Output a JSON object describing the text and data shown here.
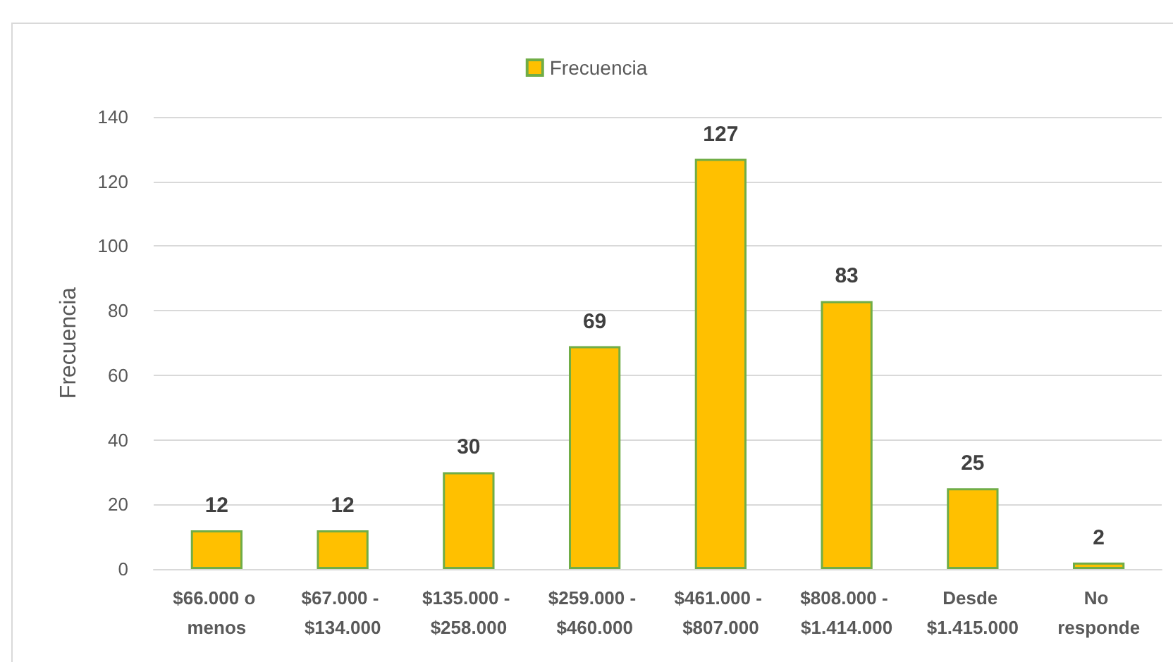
{
  "chart_data": {
    "type": "bar",
    "categories": [
      "$66.000 o menos",
      "$67.000 - $134.000",
      "$135.000 - $258.000",
      "$259.000 - $460.000",
      "$461.000 - $807.000",
      "$808.000 - $1.414.000",
      "Desde $1.415.000",
      "No responde"
    ],
    "series": [
      {
        "name": "Frecuencia",
        "color": "#ffc000",
        "values": [
          12,
          12,
          30,
          69,
          127,
          83,
          25,
          2
        ]
      }
    ],
    "ylabel": "Frecuencia",
    "ylim": [
      0,
      140
    ],
    "yticks": [
      0,
      20,
      40,
      60,
      80,
      100,
      120,
      140
    ],
    "grid": "y",
    "legend": "top",
    "data_labels": true
  }
}
